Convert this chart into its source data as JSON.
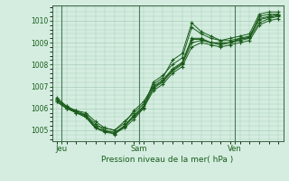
{
  "title": "Pression niveau de la mer( hPa )",
  "bg_color": "#d4ede0",
  "grid_color": "#a8ccb8",
  "line_color": "#1a5c1a",
  "marker_color": "#1a5c1a",
  "ylim": [
    1004.5,
    1010.7
  ],
  "yticks": [
    1005,
    1006,
    1007,
    1008,
    1009,
    1010
  ],
  "day_labels": [
    "Jeu",
    "Sam",
    "Ven"
  ],
  "day_positions": [
    0.5,
    8.5,
    18.5
  ],
  "xlim": [
    -0.5,
    23.5
  ],
  "series": [
    [
      1006.4,
      1006.1,
      1005.8,
      1005.7,
      1005.3,
      1005.0,
      1004.8,
      1005.2,
      1005.6,
      1006.0,
      1007.2,
      1007.5,
      1008.0,
      1008.3,
      1009.7,
      1009.4,
      1009.2,
      1009.1,
      1009.1,
      1009.2,
      1009.2,
      1010.2,
      1010.3,
      1010.3
    ],
    [
      1006.4,
      1006.0,
      1005.9,
      1005.7,
      1005.2,
      1005.1,
      1005.0,
      1005.3,
      1005.9,
      1006.3,
      1007.0,
      1007.3,
      1007.8,
      1008.1,
      1009.2,
      1009.2,
      1009.0,
      1009.0,
      1009.0,
      1009.2,
      1009.3,
      1010.1,
      1010.2,
      1010.3
    ],
    [
      1006.3,
      1006.0,
      1005.8,
      1005.6,
      1005.1,
      1005.0,
      1004.9,
      1005.2,
      1005.7,
      1006.1,
      1006.9,
      1007.2,
      1007.7,
      1008.0,
      1009.0,
      1009.1,
      1009.0,
      1008.9,
      1009.0,
      1009.1,
      1009.2,
      1009.9,
      1010.1,
      1010.2
    ],
    [
      1006.5,
      1006.1,
      1005.9,
      1005.8,
      1005.4,
      1005.1,
      1005.0,
      1005.4,
      1005.8,
      1006.2,
      1007.1,
      1007.4,
      1008.2,
      1008.5,
      1009.9,
      1009.5,
      1009.3,
      1009.1,
      1009.2,
      1009.3,
      1009.4,
      1010.3,
      1010.4,
      1010.4
    ],
    [
      1006.3,
      1006.0,
      1005.8,
      1005.6,
      1005.1,
      1004.9,
      1004.85,
      1005.1,
      1005.5,
      1006.0,
      1006.8,
      1007.1,
      1007.6,
      1007.9,
      1008.8,
      1009.0,
      1008.9,
      1008.8,
      1008.9,
      1009.0,
      1009.1,
      1009.8,
      1010.0,
      1010.1
    ],
    [
      1006.4,
      1006.05,
      1005.85,
      1005.65,
      1005.15,
      1004.95,
      1004.9,
      1005.15,
      1005.65,
      1006.05,
      1006.95,
      1007.25,
      1007.75,
      1008.05,
      1009.15,
      1009.15,
      1009.0,
      1008.95,
      1009.0,
      1009.15,
      1009.25,
      1010.05,
      1010.15,
      1010.25
    ]
  ]
}
